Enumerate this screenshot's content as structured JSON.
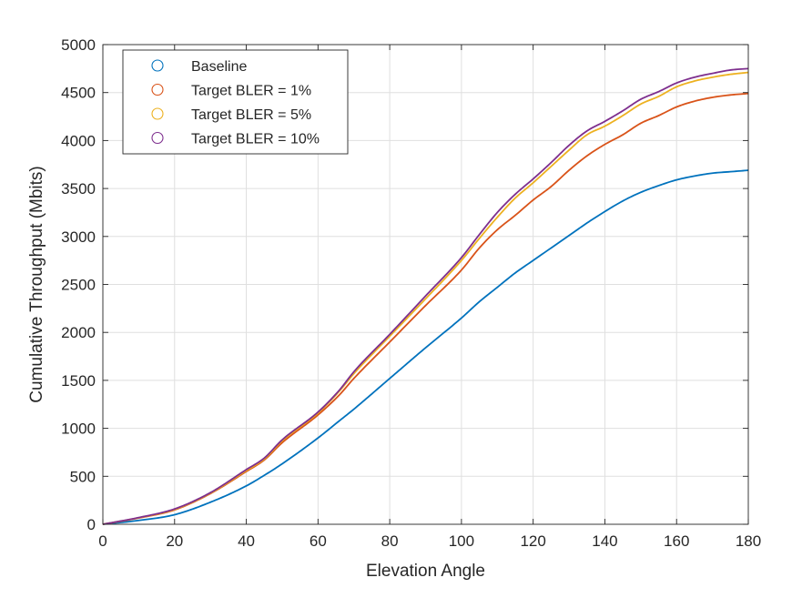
{
  "chart_data": {
    "type": "line",
    "xlabel": "Elevation Angle",
    "ylabel": "Cumulative Throughput (Mbits)",
    "xlim": [
      0,
      180
    ],
    "ylim": [
      0,
      5000
    ],
    "xticks": [
      0,
      20,
      40,
      60,
      80,
      100,
      120,
      140,
      160,
      180
    ],
    "yticks": [
      0,
      500,
      1000,
      1500,
      2000,
      2500,
      3000,
      3500,
      4000,
      4500,
      5000
    ],
    "grid": true,
    "legend_position": "top-left",
    "x": [
      0,
      10,
      20,
      30,
      40,
      45,
      50,
      60,
      66,
      70,
      80,
      90,
      100,
      105,
      110,
      115,
      120,
      125,
      130,
      135,
      140,
      145,
      150,
      155,
      160,
      165,
      170,
      175,
      180
    ],
    "series": [
      {
        "name": "Baseline",
        "color": "#0072BD",
        "values": [
          0,
          40,
          100,
          230,
          400,
          510,
          630,
          900,
          1080,
          1200,
          1520,
          1840,
          2150,
          2320,
          2470,
          2620,
          2750,
          2880,
          3010,
          3140,
          3260,
          3370,
          3460,
          3530,
          3590,
          3630,
          3660,
          3675,
          3690
        ]
      },
      {
        "name": "Target BLER = 1%",
        "color": "#D95319",
        "values": [
          0,
          65,
          150,
          320,
          550,
          670,
          850,
          1140,
          1350,
          1520,
          1900,
          2280,
          2650,
          2880,
          3070,
          3220,
          3380,
          3520,
          3690,
          3840,
          3960,
          4060,
          4180,
          4260,
          4350,
          4410,
          4450,
          4475,
          4490
        ]
      },
      {
        "name": "Target BLER = 5%",
        "color": "#EDB120",
        "values": [
          0,
          68,
          155,
          325,
          560,
          680,
          870,
          1160,
          1390,
          1570,
          1960,
          2350,
          2750,
          2980,
          3200,
          3400,
          3560,
          3730,
          3900,
          4060,
          4150,
          4260,
          4380,
          4460,
          4560,
          4620,
          4660,
          4690,
          4710
        ]
      },
      {
        "name": "Target BLER = 10%",
        "color": "#7E2F8E",
        "values": [
          0,
          70,
          160,
          330,
          570,
          690,
          880,
          1170,
          1400,
          1590,
          1980,
          2380,
          2780,
          3020,
          3250,
          3440,
          3600,
          3770,
          3950,
          4100,
          4200,
          4310,
          4430,
          4510,
          4600,
          4660,
          4700,
          4735,
          4750
        ]
      }
    ]
  }
}
